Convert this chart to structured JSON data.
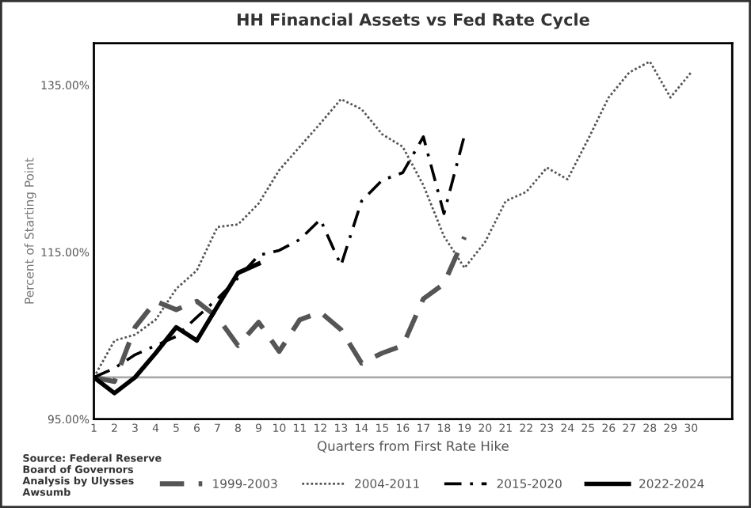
{
  "chart_data": {
    "type": "line",
    "title": "HH Financial Assets vs Fed Rate Cycle",
    "xlabel": "Quarters from First Rate Hike",
    "ylabel": "Percent of Starting Point",
    "x": [
      1,
      2,
      3,
      4,
      5,
      6,
      7,
      8,
      9,
      10,
      11,
      12,
      13,
      14,
      15,
      16,
      17,
      18,
      19,
      20,
      21,
      22,
      23,
      24,
      25,
      26,
      27,
      28,
      29,
      30
    ],
    "xlim": [
      1,
      32
    ],
    "xticks": [
      1,
      2,
      3,
      4,
      5,
      6,
      7,
      8,
      9,
      10,
      11,
      12,
      13,
      14,
      15,
      16,
      17,
      18,
      19,
      20,
      21,
      22,
      23,
      24,
      25,
      26,
      27,
      28,
      29,
      30
    ],
    "ylim": [
      95,
      140
    ],
    "yticks": [
      {
        "value": 95,
        "label": "95.00%"
      },
      {
        "value": 115,
        "label": "115.00%"
      },
      {
        "value": 135,
        "label": "135.00%"
      }
    ],
    "series": [
      {
        "name": "1999-2003",
        "color": "#555555",
        "line_style": "dashed",
        "values": [
          100,
          99.5,
          106.0,
          109.1,
          108.1,
          109.1,
          107.2,
          103.8,
          106.6,
          103.1,
          106.9,
          107.8,
          105.7,
          101.7,
          102.9,
          103.8,
          109.4,
          111.2,
          116.8,
          null,
          null,
          null,
          null,
          null,
          null,
          null,
          null,
          null,
          null,
          null
        ]
      },
      {
        "name": "2004-2011",
        "color": "#555555",
        "line_style": "dotted",
        "values": [
          100,
          104.4,
          105.1,
          106.9,
          110.6,
          112.8,
          118.0,
          118.3,
          120.8,
          124.8,
          127.6,
          130.4,
          133.3,
          132.1,
          129.1,
          127.6,
          123.0,
          116.9,
          113.1,
          116.2,
          121.1,
          122.2,
          125.1,
          123.7,
          128.5,
          133.5,
          136.5,
          137.8,
          133.5,
          136.5
        ]
      },
      {
        "name": "2015-2020",
        "color": "#000000",
        "line_style": "dashdot",
        "values": [
          100,
          101.1,
          102.7,
          103.8,
          104.9,
          107.2,
          109.4,
          111.9,
          114.6,
          115.2,
          116.5,
          118.9,
          113.4,
          121.1,
          123.6,
          124.5,
          128.8,
          119.6,
          129.0,
          null,
          null,
          null,
          null,
          null,
          null,
          null,
          null,
          null,
          null,
          null
        ]
      },
      {
        "name": "2022-2024",
        "color": "#000000",
        "line_style": "solid",
        "values": [
          100,
          98.1,
          100,
          102.9,
          106.0,
          104.4,
          108.5,
          112.5,
          113.6,
          null,
          null,
          null,
          null,
          null,
          null,
          null,
          null,
          null,
          null,
          null,
          null,
          null,
          null,
          null,
          null,
          null,
          null,
          null,
          null,
          null
        ]
      }
    ],
    "ref_lines": [
      {
        "axis": "y",
        "value": 100,
        "color": "#aaaaaa"
      }
    ],
    "annotations": [
      "Source: Federal Reserve\nBoard of Governors\nAnalysis by Ulysses\nAwsumb"
    ],
    "grid": false,
    "legend": "bottom",
    "marker": "none"
  }
}
